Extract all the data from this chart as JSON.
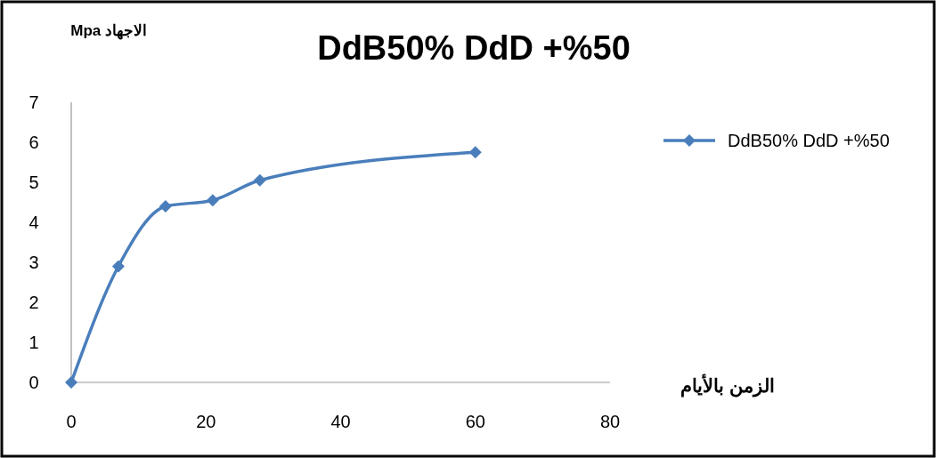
{
  "chart_data": {
    "type": "line",
    "title": "DdB50% DdD +%50",
    "xlabel": "الزمن بالأيام",
    "ylabel": "الاجهاد Mpa",
    "x": [
      0,
      7,
      14,
      21,
      28,
      60
    ],
    "series": [
      {
        "name": "DdB50% DdD +%50",
        "color": "#4a7ebb",
        "values": [
          0,
          2.9,
          4.4,
          4.55,
          5.05,
          5.75
        ]
      }
    ],
    "xlim": [
      0,
      80
    ],
    "xticks": [
      0,
      20,
      40,
      60,
      80
    ],
    "ylim": [
      0,
      7
    ],
    "yticks": [
      0,
      1,
      2,
      3,
      4,
      5,
      6,
      7
    ],
    "grid": false,
    "legend": "right",
    "marker": "diamond",
    "line_style": "solid"
  }
}
